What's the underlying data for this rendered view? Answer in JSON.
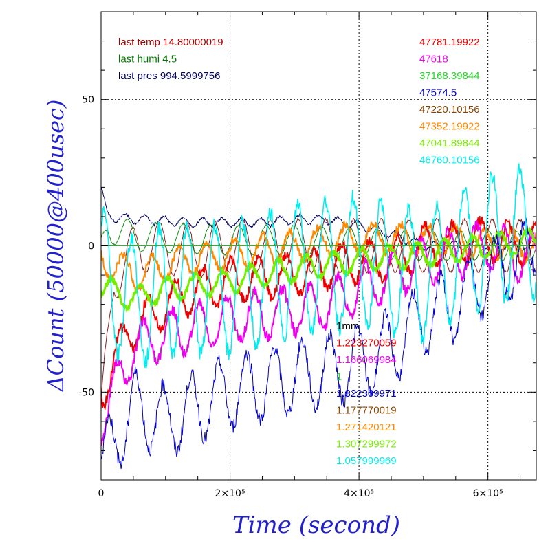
{
  "chart_data": {
    "type": "line",
    "xlabel": "Time (second)",
    "ylabel": "ΔCount (50000@400usec)",
    "xlim": [
      0,
      675000
    ],
    "ylim": [
      -80,
      80
    ],
    "x_ticks": [
      {
        "value": 0,
        "label": "0"
      },
      {
        "value": 200000,
        "label": "2×10⁵"
      },
      {
        "value": 400000,
        "label": "4×10⁵"
      },
      {
        "value": 600000,
        "label": "6×10⁵"
      }
    ],
    "y_ticks": [
      {
        "value": -50,
        "label": "-50"
      },
      {
        "value": 0,
        "label": "0"
      },
      {
        "value": 50,
        "label": "50"
      }
    ],
    "grid": true,
    "env_labels": [
      {
        "text": "last temp 14.80000019",
        "color": "#aa0000"
      },
      {
        "text": "last humi 4.5",
        "color": "#007700"
      },
      {
        "text": "last pres 994.5999756",
        "color": "#000066"
      }
    ],
    "legend_top_right": [
      {
        "text": "47781.19922",
        "color": "#ee0000"
      },
      {
        "text": "47618",
        "color": "#ee00ee"
      },
      {
        "text": "37168.39844",
        "color": "#22dd22"
      },
      {
        "text": "47574.5",
        "color": "#0000cc"
      },
      {
        "text": "47220.10156",
        "color": "#884400"
      },
      {
        "text": "47352.19922",
        "color": "#ff8800"
      },
      {
        "text": "47041.89844",
        "color": "#77ee00"
      },
      {
        "text": "46760.10156",
        "color": "#00eeee"
      }
    ],
    "legend_bottom": [
      {
        "text": "1mm",
        "color": "#000000"
      },
      {
        "text": "1.223270059",
        "color": "#ee0000"
      },
      {
        "text": "1.166069984",
        "color": "#ee00ee"
      },
      {
        "text": "1",
        "color": "#22dd22"
      },
      {
        "text": "1.322309971",
        "color": "#0000cc"
      },
      {
        "text": "1.177770019",
        "color": "#884400"
      },
      {
        "text": "1.271420121",
        "color": "#ff8800"
      },
      {
        "text": "1.307299972",
        "color": "#77ee00"
      },
      {
        "text": "1.057999969",
        "color": "#00eeee"
      }
    ],
    "series": [
      {
        "color": "#000066",
        "width": 1,
        "base": [
          [
            0,
            20
          ],
          [
            10000,
            10
          ],
          [
            60000,
            9
          ],
          [
            150000,
            8
          ],
          [
            200000,
            8
          ],
          [
            250000,
            8
          ],
          [
            300000,
            9
          ],
          [
            350000,
            9
          ],
          [
            400000,
            7
          ],
          [
            450000,
            4
          ],
          [
            500000,
            0
          ],
          [
            550000,
            0
          ],
          [
            600000,
            0
          ],
          [
            675000,
            0
          ]
        ],
        "amp": 1.5,
        "period": 30000,
        "noise": 0.4
      },
      {
        "color": "#882222",
        "width": 1,
        "base": [
          [
            0,
            -60
          ],
          [
            20000,
            -10
          ],
          [
            60000,
            0
          ],
          [
            150000,
            -2
          ],
          [
            200000,
            0
          ],
          [
            300000,
            0
          ],
          [
            400000,
            0
          ],
          [
            500000,
            0
          ],
          [
            600000,
            0
          ],
          [
            675000,
            0
          ]
        ],
        "amp": 9,
        "period": 43000,
        "noise": 0.5
      },
      {
        "color": "#118811",
        "width": 1,
        "base": [
          [
            0,
            -2
          ],
          [
            10000,
            6
          ],
          [
            60000,
            3
          ],
          [
            200000,
            2
          ],
          [
            300000,
            2
          ],
          [
            400000,
            1
          ],
          [
            500000,
            0
          ],
          [
            600000,
            0
          ],
          [
            675000,
            0
          ]
        ],
        "amp": 5,
        "period": 43000,
        "noise": 0.3
      },
      {
        "color": "#ff8800",
        "width": 2,
        "base": [
          [
            0,
            -5
          ],
          [
            60000,
            -10
          ],
          [
            120000,
            -5
          ],
          [
            200000,
            -3
          ],
          [
            300000,
            0
          ],
          [
            400000,
            3
          ],
          [
            500000,
            2
          ],
          [
            600000,
            1
          ],
          [
            675000,
            0
          ]
        ],
        "amp": 5,
        "period": 43000,
        "noise": 1.5
      },
      {
        "color": "#ee0000",
        "width": 2,
        "base": [
          [
            0,
            -50
          ],
          [
            40000,
            -30
          ],
          [
            100000,
            -20
          ],
          [
            150000,
            -15
          ],
          [
            200000,
            -12
          ],
          [
            300000,
            -10
          ],
          [
            400000,
            -5
          ],
          [
            450000,
            -5
          ],
          [
            500000,
            0
          ],
          [
            600000,
            2
          ],
          [
            675000,
            0
          ]
        ],
        "amp": 7,
        "period": 43000,
        "noise": 1.8
      },
      {
        "color": "#ee00ee",
        "width": 2,
        "base": [
          [
            0,
            -60
          ],
          [
            50000,
            -35
          ],
          [
            100000,
            -30
          ],
          [
            200000,
            -25
          ],
          [
            300000,
            -22
          ],
          [
            350000,
            -20
          ],
          [
            400000,
            -15
          ],
          [
            450000,
            -10
          ],
          [
            500000,
            -5
          ],
          [
            600000,
            0
          ],
          [
            675000,
            -5
          ]
        ],
        "amp": 8,
        "period": 43000,
        "noise": 2
      },
      {
        "color": "#77ee00",
        "width": 3,
        "base": [
          [
            0,
            -14
          ],
          [
            50000,
            -18
          ],
          [
            100000,
            -15
          ],
          [
            200000,
            -12
          ],
          [
            300000,
            -8
          ],
          [
            400000,
            -5
          ],
          [
            500000,
            -3
          ],
          [
            600000,
            0
          ],
          [
            675000,
            2
          ]
        ],
        "amp": 4,
        "period": 43000,
        "noise": 1
      },
      {
        "color": "#0000cc",
        "width": 1,
        "base": [
          [
            0,
            -75
          ],
          [
            50000,
            -55
          ],
          [
            100000,
            -60
          ],
          [
            200000,
            -50
          ],
          [
            300000,
            -45
          ],
          [
            400000,
            -40
          ],
          [
            450000,
            -35
          ],
          [
            500000,
            -25
          ],
          [
            550000,
            -20
          ],
          [
            600000,
            -10
          ],
          [
            650000,
            -5
          ],
          [
            675000,
            0
          ]
        ],
        "amp": 12,
        "period": 43000,
        "noise": 2.5
      },
      {
        "color": "#00eeee",
        "width": 1.5,
        "base": [
          [
            0,
            -10
          ],
          [
            50000,
            -20
          ],
          [
            100000,
            -15
          ],
          [
            200000,
            -15
          ],
          [
            300000,
            -8
          ],
          [
            400000,
            -5
          ],
          [
            500000,
            -10
          ],
          [
            600000,
            2
          ],
          [
            675000,
            5
          ]
        ],
        "amp": 22,
        "period": 43000,
        "noise": 3
      }
    ]
  }
}
